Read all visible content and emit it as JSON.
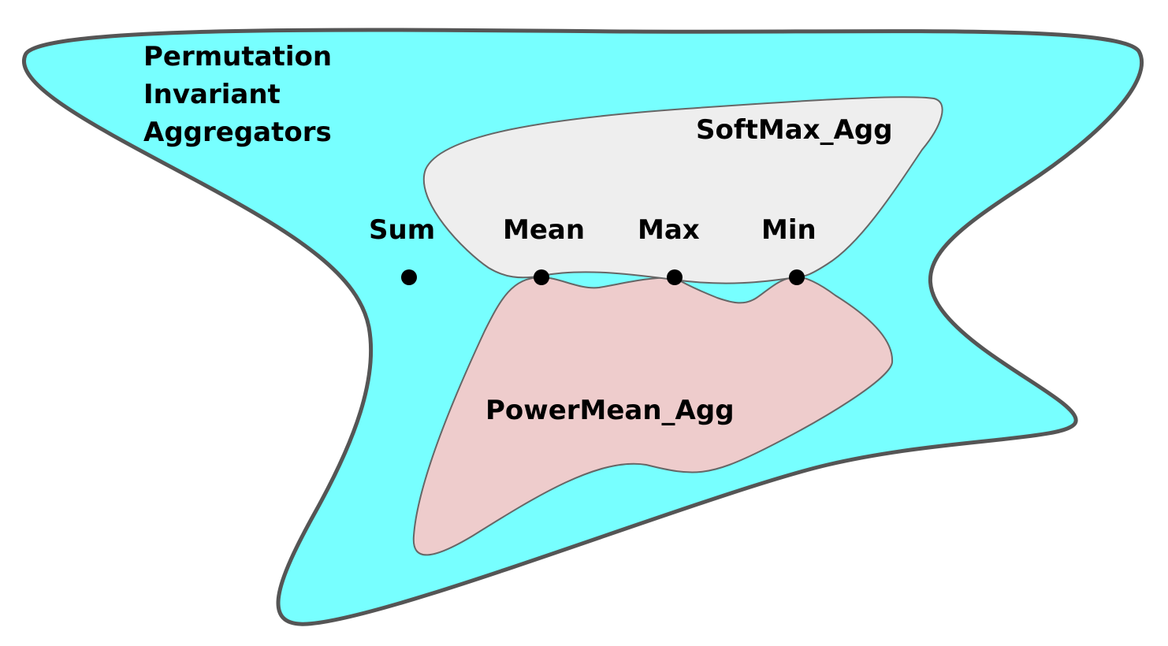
{
  "diagram": {
    "outer_region": {
      "title_lines": [
        "Permutation",
        "Invariant",
        "Aggregators"
      ],
      "fill": "#77FFFF",
      "stroke": "#555555"
    },
    "softmax_region": {
      "label": "SoftMax_Agg",
      "fill": "#EEEEEE",
      "stroke": "#666666"
    },
    "powermean_region": {
      "label": "PowerMean_Agg",
      "fill": "#EECCCC",
      "stroke": "#666666"
    },
    "points": [
      {
        "name": "sum",
        "label": "Sum"
      },
      {
        "name": "mean",
        "label": "Mean"
      },
      {
        "name": "max",
        "label": "Max"
      },
      {
        "name": "min",
        "label": "Min"
      }
    ]
  }
}
